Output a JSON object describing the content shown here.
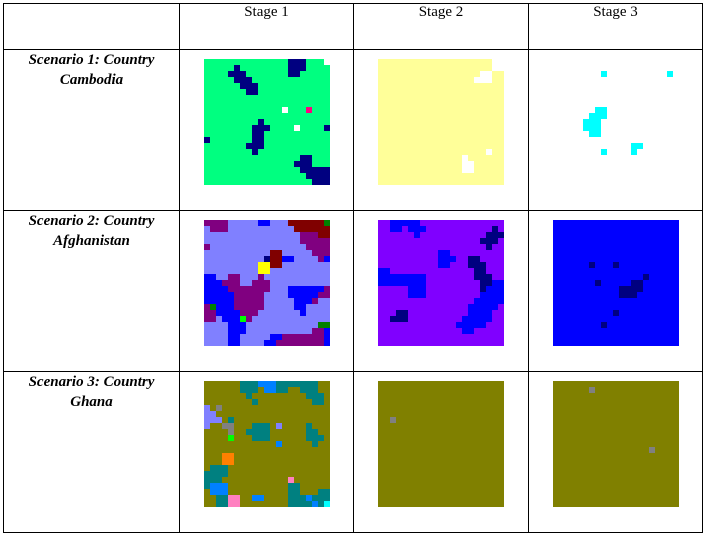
{
  "header": {
    "corner": "",
    "stages": [
      "Stage 1",
      "Stage 2",
      "Stage 3"
    ]
  },
  "rows": [
    {
      "label_line1": "Scenario 1: Country",
      "label_line2": "Cambodia",
      "images": [
        {
          "palette": [
            "#00ff80",
            "#000080",
            "#ffffff",
            "#00ffff",
            "#ff0080",
            "#0000ff",
            "#ffff80"
          ],
          "weights": [
            40,
            25,
            14,
            8,
            6,
            4,
            3
          ],
          "seed": 11
        },
        {
          "palette": [
            "#ffff99",
            "#ffffff",
            "#00ffff",
            "#008080",
            "#00ff80"
          ],
          "weights": [
            58,
            26,
            9,
            4,
            3
          ],
          "seed": 12
        },
        {
          "palette": [
            "#ffffff",
            "#00ffff"
          ],
          "weights": [
            68,
            32
          ],
          "seed": 13
        }
      ]
    },
    {
      "label_line1": "Scenario 2: Country",
      "label_line2": "Afghanistan",
      "images": [
        {
          "palette": [
            "#8080ff",
            "#800080",
            "#0000ff",
            "#008000",
            "#000080",
            "#ffff00",
            "#00ff00",
            "#800000",
            "#ff00ff",
            "#808000"
          ],
          "weights": [
            22,
            18,
            14,
            10,
            9,
            6,
            6,
            5,
            5,
            5
          ],
          "seed": 21
        },
        {
          "palette": [
            "#8000ff",
            "#0000ff",
            "#000080",
            "#800080",
            "#8080ff"
          ],
          "weights": [
            40,
            28,
            18,
            9,
            5
          ],
          "seed": 22
        },
        {
          "palette": [
            "#0000ff",
            "#000080",
            "#800080"
          ],
          "weights": [
            62,
            30,
            8
          ],
          "seed": 23
        }
      ]
    },
    {
      "label_line1": "Scenario 3: Country",
      "label_line2": "Ghana",
      "images": [
        {
          "palette": [
            "#808000",
            "#008080",
            "#0080ff",
            "#8080ff",
            "#ff8000",
            "#ff80c0",
            "#00ff00",
            "#808080",
            "#ffff00",
            "#00ffff"
          ],
          "weights": [
            26,
            16,
            12,
            10,
            9,
            8,
            6,
            6,
            4,
            3
          ],
          "seed": 31
        },
        {
          "palette": [
            "#808000",
            "#808080",
            "#008000",
            "#008080",
            "#00ff80"
          ],
          "weights": [
            70,
            18,
            6,
            4,
            2
          ],
          "seed": 32
        },
        {
          "palette": [
            "#808000",
            "#808080"
          ],
          "weights": [
            74,
            26
          ],
          "seed": 33
        }
      ]
    }
  ]
}
